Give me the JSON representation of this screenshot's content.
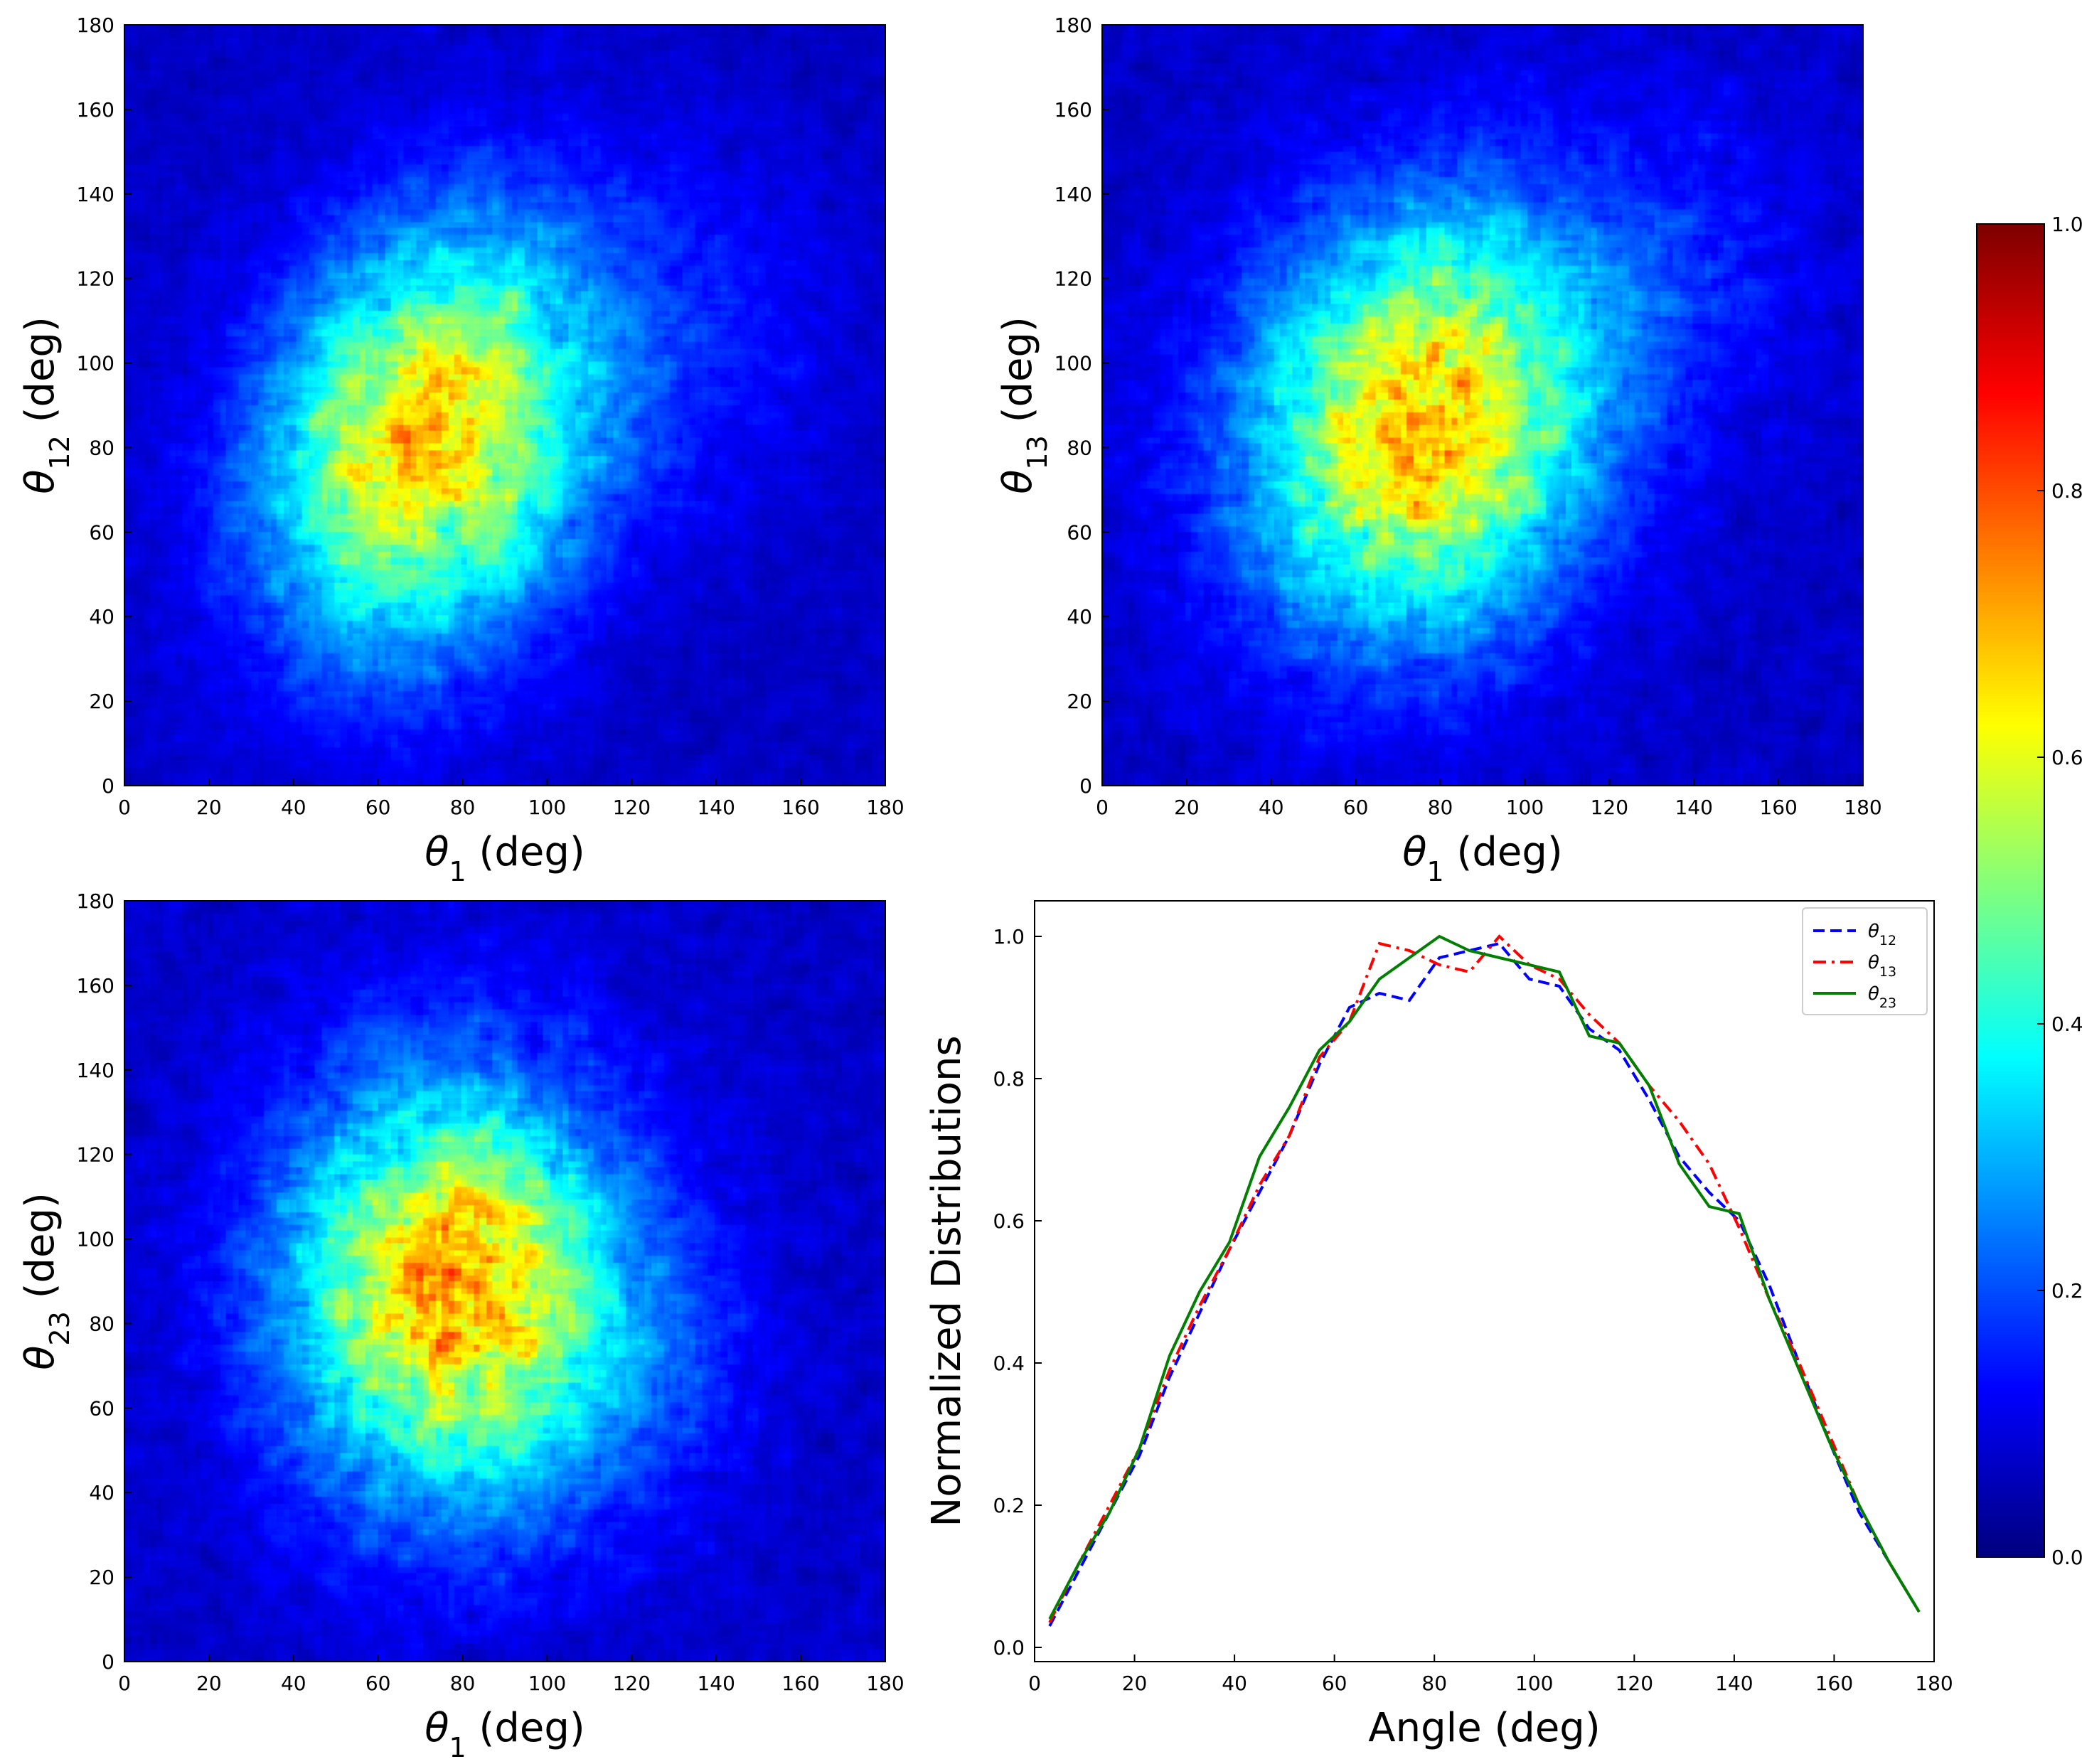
{
  "chart_data": [
    {
      "type": "heatmap",
      "panel": "top-left",
      "xlabel_symbol": "θ",
      "xlabel_sub": "1",
      "xlabel_unit": " (deg)",
      "ylabel_symbol": "θ",
      "ylabel_sub": "12",
      "ylabel_unit": " (deg)",
      "xlim": [
        0,
        180
      ],
      "ylim": [
        0,
        180
      ],
      "xticks": [
        "0",
        "20",
        "40",
        "60",
        "80",
        "100",
        "120",
        "140",
        "160",
        "180"
      ],
      "yticks": [
        "0",
        "20",
        "40",
        "60",
        "80",
        "100",
        "120",
        "140",
        "160",
        "180"
      ],
      "density_peak": [
        72,
        82
      ],
      "density_spread": [
        26,
        34
      ],
      "density_tilt": 0.15,
      "secondary_blob": [
        135,
        110,
        25,
        30,
        0.12
      ],
      "colormap": "jet"
    },
    {
      "type": "heatmap",
      "panel": "top-right",
      "xlabel_symbol": "θ",
      "xlabel_sub": "1",
      "xlabel_unit": " (deg)",
      "ylabel_symbol": "θ",
      "ylabel_sub": "13",
      "ylabel_unit": " (deg)",
      "xlim": [
        0,
        180
      ],
      "ylim": [
        0,
        180
      ],
      "xticks": [
        "0",
        "20",
        "40",
        "60",
        "80",
        "100",
        "120",
        "140",
        "160",
        "180"
      ],
      "yticks": [
        "0",
        "20",
        "40",
        "60",
        "80",
        "100",
        "120",
        "140",
        "160",
        "180"
      ],
      "density_peak": [
        76,
        86
      ],
      "density_spread": [
        28,
        34
      ],
      "density_tilt": 0.1,
      "secondary_blob": [
        135,
        125,
        25,
        25,
        0.12
      ],
      "colormap": "jet"
    },
    {
      "type": "heatmap",
      "panel": "bottom-left",
      "xlabel_symbol": "θ",
      "xlabel_sub": "1",
      "xlabel_unit": " (deg)",
      "ylabel_symbol": "θ",
      "ylabel_sub": "23",
      "ylabel_unit": " (deg)",
      "xlim": [
        0,
        180
      ],
      "ylim": [
        0,
        180
      ],
      "xticks": [
        "0",
        "20",
        "40",
        "60",
        "80",
        "100",
        "120",
        "140",
        "160",
        "180"
      ],
      "yticks": [
        "0",
        "20",
        "40",
        "60",
        "80",
        "100",
        "120",
        "140",
        "160",
        "180"
      ],
      "density_peak": [
        78,
        88
      ],
      "density_spread": [
        27,
        34
      ],
      "density_tilt": 0.0,
      "secondary_blob": [
        125,
        70,
        20,
        25,
        0.1
      ],
      "colormap": "jet"
    },
    {
      "type": "line",
      "panel": "bottom-right",
      "xlabel": "Angle (deg)",
      "ylabel": "Normalized Distributions",
      "xlim": [
        0,
        180
      ],
      "ylim": [
        -0.02,
        1.05
      ],
      "xticks": [
        "0",
        "20",
        "40",
        "60",
        "80",
        "100",
        "120",
        "140",
        "160",
        "180"
      ],
      "yticks": [
        "0.0",
        "0.2",
        "0.4",
        "0.6",
        "0.8",
        "1.0"
      ],
      "legend_position": "top-right",
      "series": [
        {
          "name_symbol": "θ",
          "name_sub": "12",
          "color": "#0000ff",
          "dash": "dashed",
          "x": [
            3,
            9,
            15,
            21,
            27,
            33,
            39,
            45,
            51,
            57,
            63,
            69,
            75,
            81,
            87,
            93,
            99,
            105,
            111,
            117,
            123,
            129,
            135,
            141,
            147,
            153,
            159,
            165,
            171,
            177
          ],
          "y": [
            0.03,
            0.11,
            0.19,
            0.27,
            0.38,
            0.47,
            0.56,
            0.64,
            0.72,
            0.82,
            0.9,
            0.92,
            0.91,
            0.97,
            0.98,
            0.99,
            0.94,
            0.93,
            0.87,
            0.84,
            0.77,
            0.69,
            0.64,
            0.6,
            0.51,
            0.4,
            0.29,
            0.19,
            0.12,
            0.05
          ]
        },
        {
          "name_symbol": "θ",
          "name_sub": "13",
          "color": "#ff0000",
          "dash": "dashdot",
          "x": [
            3,
            9,
            15,
            21,
            27,
            33,
            39,
            45,
            51,
            57,
            63,
            69,
            75,
            81,
            87,
            93,
            99,
            105,
            111,
            117,
            123,
            129,
            135,
            141,
            147,
            153,
            159,
            165,
            171,
            177
          ],
          "y": [
            0.035,
            0.12,
            0.2,
            0.28,
            0.39,
            0.48,
            0.56,
            0.65,
            0.72,
            0.83,
            0.88,
            0.99,
            0.98,
            0.96,
            0.95,
            1.0,
            0.96,
            0.94,
            0.89,
            0.85,
            0.79,
            0.74,
            0.68,
            0.59,
            0.49,
            0.4,
            0.3,
            0.2,
            0.12,
            0.05
          ]
        },
        {
          "name_symbol": "θ",
          "name_sub": "23",
          "color": "#007f00",
          "dash": "solid",
          "x": [
            3,
            9,
            15,
            21,
            27,
            33,
            39,
            45,
            51,
            57,
            63,
            69,
            75,
            81,
            87,
            93,
            99,
            105,
            111,
            117,
            123,
            129,
            135,
            141,
            147,
            153,
            159,
            165,
            171,
            177
          ],
          "y": [
            0.04,
            0.12,
            0.19,
            0.28,
            0.41,
            0.5,
            0.57,
            0.69,
            0.76,
            0.84,
            0.88,
            0.94,
            0.97,
            1.0,
            0.98,
            0.97,
            0.96,
            0.95,
            0.86,
            0.85,
            0.79,
            0.68,
            0.62,
            0.61,
            0.49,
            0.39,
            0.29,
            0.2,
            0.12,
            0.05
          ]
        }
      ]
    },
    {
      "type": "colorbar",
      "panel": "right",
      "vlim": [
        0.0,
        1.0
      ],
      "ticks": [
        "0.0",
        "0.2",
        "0.4",
        "0.6",
        "0.8",
        "1.0"
      ],
      "colormap": "jet"
    }
  ]
}
